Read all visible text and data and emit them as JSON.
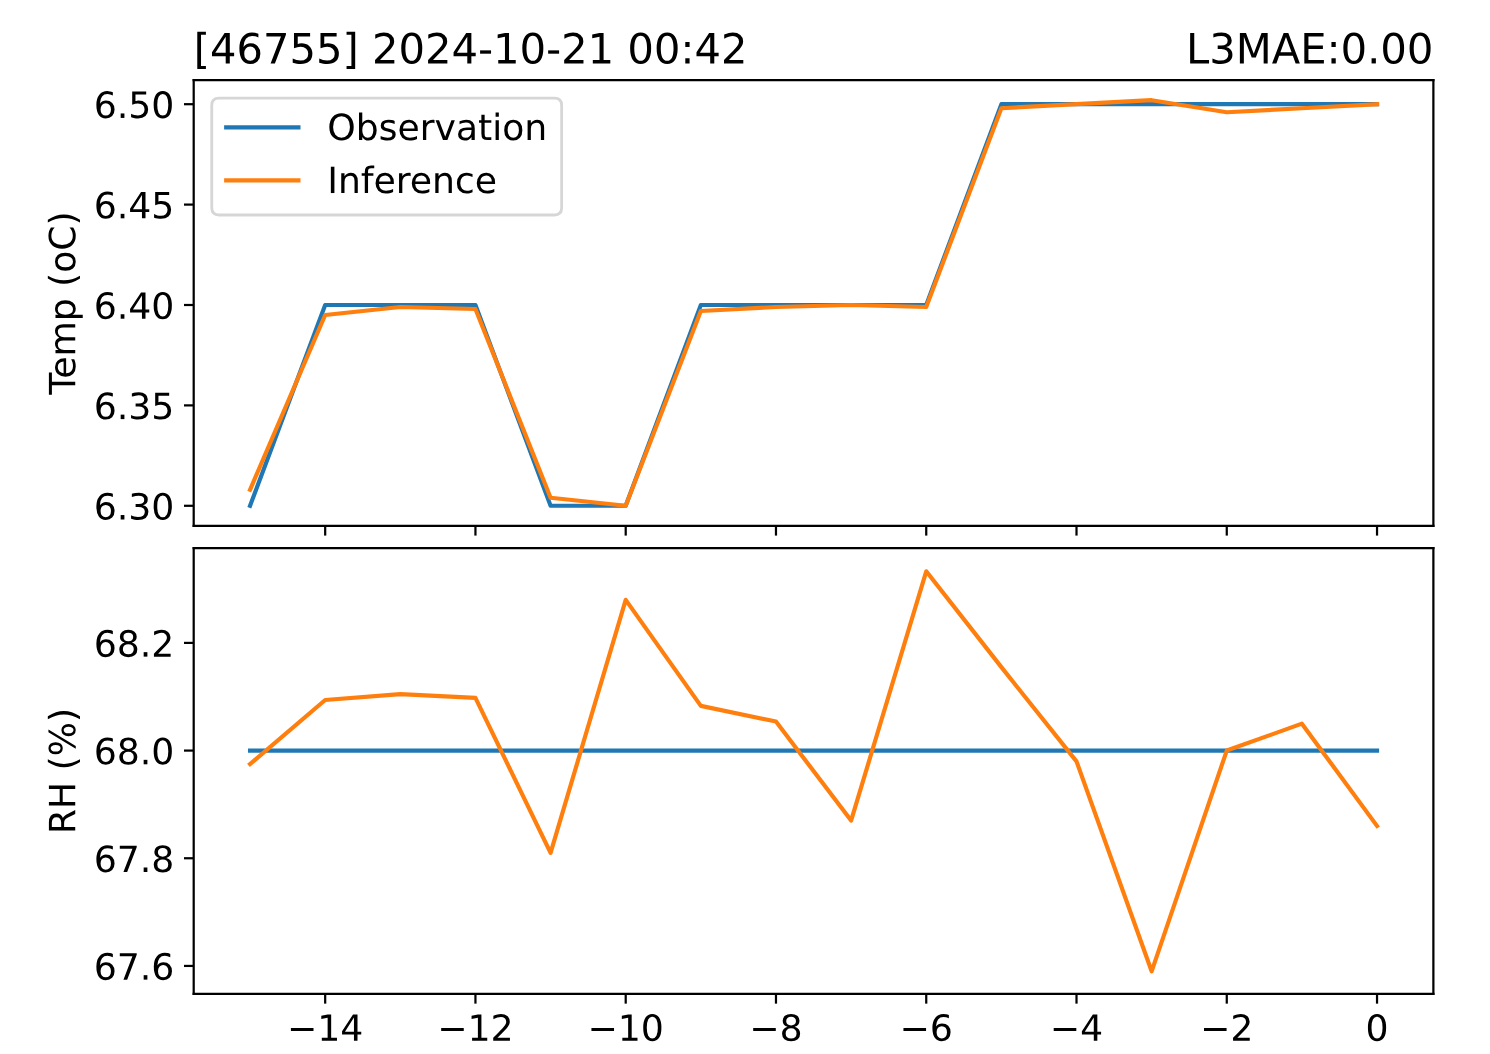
{
  "chart_data": [
    {
      "type": "line",
      "title": "[46755] 2024-10-21 00:42",
      "annotations": [
        "L3MAE:0.00"
      ],
      "ylabel": "Temp (oC)",
      "x": [
        -15,
        -14,
        -13,
        -12,
        -11,
        -10,
        -9,
        -8,
        -7,
        -6,
        -5,
        -4,
        -3,
        -2,
        -1,
        0
      ],
      "series": [
        {
          "name": "Observation",
          "color": "#1f77b4",
          "values": [
            6.3,
            6.4,
            6.4,
            6.4,
            6.3,
            6.3,
            6.4,
            6.4,
            6.4,
            6.4,
            6.5,
            6.5,
            6.5,
            6.5,
            6.5,
            6.5
          ]
        },
        {
          "name": "Inference",
          "color": "#ff7f0e",
          "values": [
            6.308,
            6.395,
            6.399,
            6.398,
            6.304,
            6.3,
            6.397,
            6.399,
            6.4,
            6.399,
            6.498,
            6.5,
            6.502,
            6.496,
            6.498,
            6.5
          ]
        }
      ],
      "xlim": [
        -15.75,
        0.75
      ],
      "xticks": [
        {
          "value": -14,
          "label": null
        },
        {
          "value": -12,
          "label": null
        },
        {
          "value": -10,
          "label": null
        },
        {
          "value": -8,
          "label": null
        },
        {
          "value": -6,
          "label": null
        },
        {
          "value": -4,
          "label": null
        },
        {
          "value": -2,
          "label": null
        },
        {
          "value": 0,
          "label": null
        }
      ],
      "ylim": [
        6.29,
        6.512
      ],
      "yticks": [
        {
          "value": 6.3,
          "label": "6.30"
        },
        {
          "value": 6.35,
          "label": "6.35"
        },
        {
          "value": 6.4,
          "label": "6.40"
        },
        {
          "value": 6.45,
          "label": "6.45"
        },
        {
          "value": 6.5,
          "label": "6.50"
        }
      ],
      "tick_labels": "y",
      "legend": "top left",
      "grid": false
    },
    {
      "type": "line",
      "ylabel": "RH (%)",
      "x": [
        -15,
        -14,
        -13,
        -12,
        -11,
        -10,
        -9,
        -8,
        -7,
        -6,
        -5,
        -4,
        -3,
        -2,
        -1,
        0
      ],
      "series": [
        {
          "color": "#1f77b4",
          "values": [
            68.0,
            68.0,
            68.0,
            68.0,
            68.0,
            68.0,
            68.0,
            68.0,
            68.0,
            68.0,
            68.0,
            68.0,
            68.0,
            68.0,
            68.0,
            68.0
          ]
        },
        {
          "color": "#ff7f0e",
          "values": [
            67.975,
            68.094,
            68.105,
            68.098,
            67.81,
            68.28,
            68.083,
            68.054,
            67.87,
            68.333,
            68.155,
            67.98,
            67.59,
            68.0,
            68.05,
            67.86
          ]
        }
      ],
      "xlim": [
        -15.75,
        0.75
      ],
      "xticks": [
        {
          "value": -14,
          "label": "−14"
        },
        {
          "value": -12,
          "label": "−12"
        },
        {
          "value": -10,
          "label": "−10"
        },
        {
          "value": -8,
          "label": "−8"
        },
        {
          "value": -6,
          "label": "−6"
        },
        {
          "value": -4,
          "label": "−4"
        },
        {
          "value": -2,
          "label": "−2"
        },
        0
      ],
      "ylim": [
        67.548,
        68.376
      ],
      "yticks": [
        67.6,
        67.8,
        {
          "value": 68.0,
          "label": "68.0"
        },
        68.2
      ],
      "grid": false
    }
  ]
}
